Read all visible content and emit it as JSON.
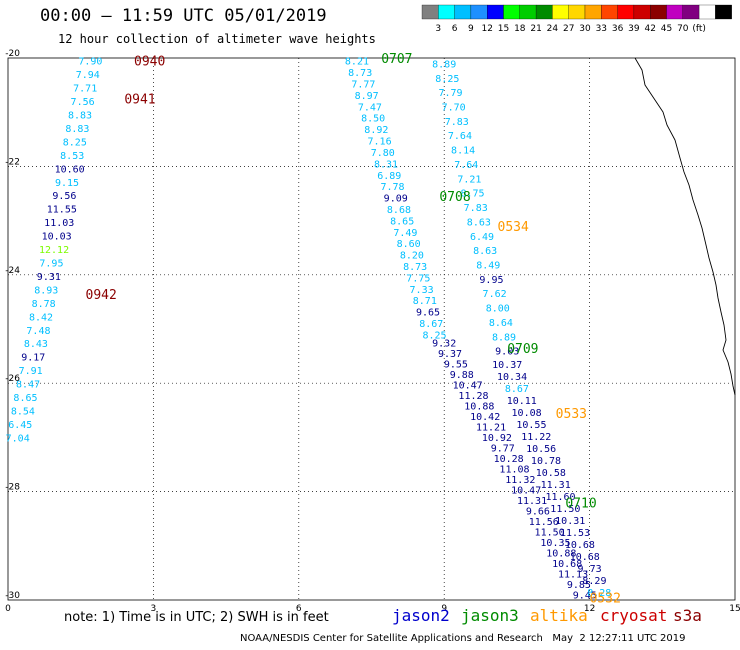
{
  "header": {
    "title": "00:00 – 11:59 UTC 05/01/2019",
    "subtitle": "12 hour collection of altimeter wave heights"
  },
  "scale": {
    "colors": [
      "#808080",
      "#00ffff",
      "#00bfff",
      "#1e90ff",
      "#0000ff",
      "#00ff00",
      "#00cd00",
      "#008b00",
      "#ffff00",
      "#ffd700",
      "#ffa500",
      "#ff4500",
      "#ff0000",
      "#cd0000",
      "#8b0000",
      "#c000c0",
      "#800080",
      "#ffffff",
      "#000000"
    ],
    "labels": [
      "3",
      "6",
      "9",
      "12",
      "15",
      "18",
      "21",
      "24",
      "27",
      "30",
      "33",
      "36",
      "39",
      "42",
      "45",
      "70",
      "(ft)"
    ]
  },
  "axes": {
    "x_ticks": [
      "0",
      "3",
      "6",
      "9",
      "12",
      "15"
    ],
    "y_ticks": [
      "-20",
      "-22",
      "-24",
      "-26",
      "-28",
      "-30"
    ]
  },
  "colors": {
    "jason2": "#0000cc",
    "jason3": "#008b00",
    "altika": "#ff9900",
    "cryosat": "#cc0000",
    "s3a": "#8b0000",
    "c_cyan": "#00bfff",
    "c_navy": "#00008b",
    "c_green": "#7cfc00"
  },
  "passes": [
    {
      "id": "0940",
      "x": 2.6,
      "y": -20.05,
      "sat": "s3a"
    },
    {
      "id": "0941",
      "x": 2.4,
      "y": -20.75,
      "sat": "s3a"
    },
    {
      "id": "0942",
      "x": 1.6,
      "y": -24.35,
      "sat": "s3a"
    },
    {
      "id": "0707",
      "x": 7.7,
      "y": -20.0,
      "sat": "jason3"
    },
    {
      "id": "0708",
      "x": 8.9,
      "y": -22.55,
      "sat": "jason3"
    },
    {
      "id": "0709",
      "x": 10.3,
      "y": -25.35,
      "sat": "jason3"
    },
    {
      "id": "0710",
      "x": 11.5,
      "y": -28.2,
      "sat": "jason3"
    },
    {
      "id": "0534",
      "x": 10.1,
      "y": -23.1,
      "sat": "altika"
    },
    {
      "id": "0533",
      "x": 11.3,
      "y": -26.55,
      "sat": "altika"
    },
    {
      "id": "0532",
      "x": 12.0,
      "y": -29.95,
      "sat": "altika"
    }
  ],
  "tracks": [
    {
      "x0": 1.7,
      "y0": -20.05,
      "x1": 0.2,
      "y1": -27.0,
      "color": "c_cyan",
      "values": [
        "7.90",
        "7.94",
        "7.71",
        "7.56",
        "8.83",
        "8.83",
        "8.25",
        "8.53",
        "10.60",
        "9.15",
        "9.56",
        "11.55",
        "11.03",
        "10.03",
        "12.12",
        "7.95",
        "9.31",
        "8.93",
        "8.78",
        "8.42",
        "7.48",
        "8.43",
        "9.17",
        "7.91",
        "8.47",
        "8.65",
        "8.54",
        "6.45",
        "7.04"
      ],
      "cols": [
        "c_cyan",
        "c_cyan",
        "c_cyan",
        "c_cyan",
        "c_cyan",
        "c_cyan",
        "c_cyan",
        "c_cyan",
        "c_navy",
        "c_cyan",
        "c_navy",
        "c_navy",
        "c_navy",
        "c_navy",
        "c_green",
        "c_cyan",
        "c_navy",
        "c_cyan",
        "c_cyan",
        "c_cyan",
        "c_cyan",
        "c_cyan",
        "c_navy",
        "c_cyan",
        "c_cyan",
        "c_cyan",
        "c_cyan",
        "c_cyan",
        "c_cyan"
      ]
    },
    {
      "x0": 7.2,
      "y0": -20.05,
      "x1": 8.8,
      "y1": -25.1,
      "color": "c_cyan",
      "values": [
        "8.21",
        "8.73",
        "7.77",
        "8.97",
        "7.47",
        "8.50",
        "8.92",
        "7.16",
        "7.80",
        "8.31",
        "6.89",
        "7.78",
        "9.09",
        "8.68",
        "8.65",
        "7.49",
        "8.60",
        "8.20",
        "8.73",
        "7.75",
        "7.33",
        "8.71",
        "9.65",
        "8.67",
        "8.25"
      ],
      "cols": [
        "c_cyan",
        "c_cyan",
        "c_cyan",
        "c_cyan",
        "c_cyan",
        "c_cyan",
        "c_cyan",
        "c_cyan",
        "c_cyan",
        "c_cyan",
        "c_cyan",
        "c_cyan",
        "c_navy",
        "c_cyan",
        "c_cyan",
        "c_cyan",
        "c_cyan",
        "c_cyan",
        "c_cyan",
        "c_cyan",
        "c_cyan",
        "c_cyan",
        "c_navy",
        "c_cyan",
        "c_cyan"
      ]
    },
    {
      "x0": 9.0,
      "y0": -20.1,
      "x1": 10.3,
      "y1": -25.4,
      "color": "c_cyan",
      "values": [
        "8.89",
        "8.25",
        "7.79",
        "7.70",
        "7.83",
        "7.64",
        "8.14",
        "7.64",
        "7.21",
        "8.75",
        "7.83",
        "8.63",
        "6.49",
        "8.63",
        "8.49",
        "9.95",
        "7.62",
        "8.00",
        "8.64",
        "8.89",
        "9.03"
      ],
      "cols": [
        "c_cyan",
        "c_cyan",
        "c_cyan",
        "c_cyan",
        "c_cyan",
        "c_cyan",
        "c_cyan",
        "c_cyan",
        "c_cyan",
        "c_cyan",
        "c_cyan",
        "c_cyan",
        "c_cyan",
        "c_cyan",
        "c_cyan",
        "c_navy",
        "c_cyan",
        "c_cyan",
        "c_cyan",
        "c_cyan",
        "c_navy"
      ]
    },
    {
      "x0": 9.0,
      "y0": -25.25,
      "x1": 11.9,
      "y1": -29.9,
      "color": "c_navy",
      "values": [
        "9.32",
        "9.37",
        "9.55",
        "9.88",
        "10.47",
        "11.28",
        "10.88",
        "10.42",
        "11.21",
        "10.92",
        "9.77",
        "10.28",
        "11.08",
        "11.32",
        "10.47",
        "11.31",
        "9.66",
        "11.56",
        "11.50",
        "10.35",
        "10.88",
        "10.68",
        "11.13",
        "9.85",
        "9.45"
      ],
      "cols": [
        "c_navy",
        "c_navy",
        "c_navy",
        "c_navy",
        "c_navy",
        "c_navy",
        "c_navy",
        "c_navy",
        "c_navy",
        "c_navy",
        "c_navy",
        "c_navy",
        "c_navy",
        "c_navy",
        "c_navy",
        "c_navy",
        "c_navy",
        "c_navy",
        "c_navy",
        "c_navy",
        "c_navy",
        "c_navy",
        "c_navy",
        "c_navy",
        "c_navy"
      ]
    },
    {
      "x0": 10.3,
      "y0": -25.65,
      "x1": 12.2,
      "y1": -29.85,
      "color": "c_navy",
      "values": [
        "10.37",
        "10.34",
        "8.67",
        "10.11",
        "10.08",
        "10.55",
        "11.22",
        "10.56",
        "10.78",
        "10.58",
        "11.31",
        "11.60",
        "11.50",
        "10.31",
        "11.53",
        "10.68",
        "10.68",
        "9.73",
        "8.29",
        "8.28"
      ],
      "cols": [
        "c_navy",
        "c_navy",
        "c_cyan",
        "c_navy",
        "c_navy",
        "c_navy",
        "c_navy",
        "c_navy",
        "c_navy",
        "c_navy",
        "c_navy",
        "c_navy",
        "c_navy",
        "c_navy",
        "c_navy",
        "c_navy",
        "c_navy",
        "c_navy",
        "c_navy",
        "c_cyan"
      ]
    }
  ],
  "legend": {
    "note": "note: 1) Time is in UTC; 2) SWH is in feet",
    "jason2": "jason2",
    "jason3": "jason3",
    "altika": "altika",
    "cryosat": "cryosat",
    "s3a": "s3a"
  },
  "footer": "NOAA/NESDIS Center for Satellite Applications and Research   May  2 12:27:11 UTC 2019"
}
